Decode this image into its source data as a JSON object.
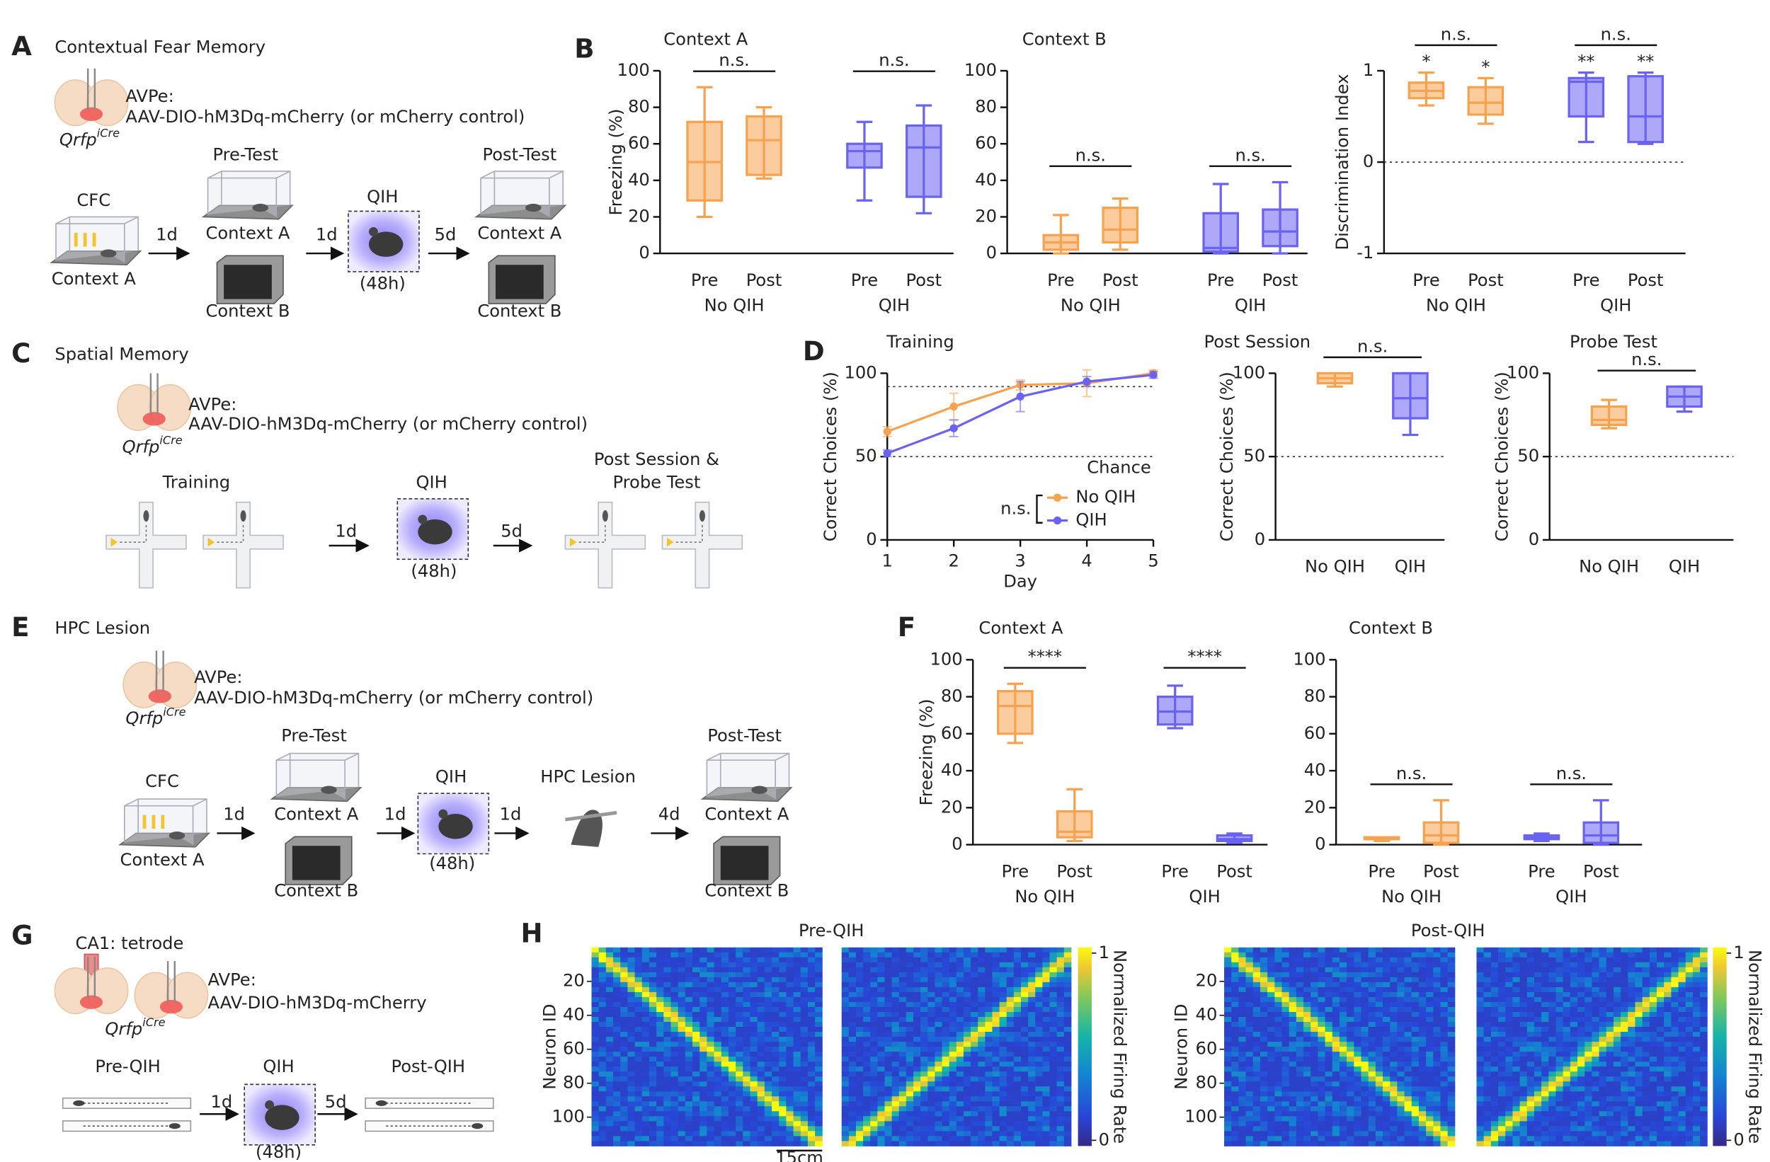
{
  "panels": {
    "A": {
      "letter": "A",
      "title": "Contextual Fear Memory",
      "region": "AVPe:",
      "construct": "AAV-DIO-hM3Dq-mCherry (or mCherry control)",
      "line": "Qrfp",
      "line_sup": "iCre",
      "labels": [
        "CFC",
        "Context A",
        "1d",
        "Pre-Test",
        "Context A",
        "Context B",
        "1d",
        "QIH",
        "(48h)",
        "5d",
        "Post-Test",
        "Context A",
        "Context B"
      ]
    },
    "B": {
      "letter": "B"
    },
    "C": {
      "letter": "C",
      "title": "Spatial Memory",
      "region": "AVPe:",
      "construct": "AAV-DIO-hM3Dq-mCherry (or mCherry control)",
      "line": "Qrfp",
      "line_sup": "iCre",
      "labels": [
        "Training",
        "1d",
        "QIH",
        "(48h)",
        "5d",
        "Post Session &",
        "Probe Test"
      ]
    },
    "D": {
      "letter": "D"
    },
    "E": {
      "letter": "E",
      "title": "HPC Lesion",
      "region": "AVPe:",
      "construct": "AAV-DIO-hM3Dq-mCherry (or mCherry control)",
      "line": "Qrfp",
      "line_sup": "iCre",
      "labels": [
        "CFC",
        "Context A",
        "1d",
        "Pre-Test",
        "Context A",
        "Context B",
        "1d",
        "QIH",
        "(48h)",
        "1d",
        "HPC Lesion",
        "4d",
        "Post-Test",
        "Context A",
        "Context B"
      ]
    },
    "F": {
      "letter": "F"
    },
    "G": {
      "letter": "G",
      "recording": "CA1: tetrode",
      "region": "AVPe:",
      "construct": "AAV-DIO-hM3Dq-mCherry",
      "line": "Qrfp",
      "line_sup": "iCre",
      "labels": [
        "Pre-QIH",
        "1d",
        "QIH",
        "(48h)",
        "5d",
        "Post-QIH"
      ]
    },
    "H": {
      "letter": "H"
    }
  },
  "chart_data": [
    {
      "type": "box",
      "title": "Context A",
      "ylabel": "Freezing (%)",
      "ylim": [
        0,
        100
      ],
      "yticks": [
        0,
        20,
        40,
        60,
        80,
        100
      ],
      "groups": [
        {
          "name": "No QIH",
          "boxes": [
            {
              "label": "Pre",
              "color": "#f7a24f",
              "min": 20,
              "q1": 29,
              "median": 50,
              "q3": 72,
              "max": 91
            },
            {
              "label": "Post",
              "color": "#f7a24f",
              "min": 41,
              "q1": 43,
              "median": 62,
              "q3": 75,
              "max": 80
            }
          ]
        },
        {
          "name": "QIH",
          "boxes": [
            {
              "label": "Pre",
              "color": "#6a63f2",
              "min": 29,
              "q1": 47,
              "median": 56,
              "q3": 60,
              "max": 72
            },
            {
              "label": "Post",
              "color": "#6a63f2",
              "min": 22,
              "q1": 31,
              "median": 58,
              "q3": 70,
              "max": 81
            }
          ]
        }
      ],
      "significance": [
        {
          "label": "n.s.",
          "group": 0
        },
        {
          "label": "n.s.",
          "group": 1
        }
      ]
    },
    {
      "type": "box",
      "title": "Context B",
      "ylim": [
        0,
        100
      ],
      "yticks": [
        0,
        20,
        40,
        60,
        80,
        100
      ],
      "groups": [
        {
          "name": "No QIH",
          "boxes": [
            {
              "label": "Pre",
              "color": "#f7a24f",
              "min": 0,
              "q1": 2,
              "median": 6,
              "q3": 10,
              "max": 21
            },
            {
              "label": "Post",
              "color": "#f7a24f",
              "min": 2,
              "q1": 6,
              "median": 13,
              "q3": 25,
              "max": 30
            }
          ]
        },
        {
          "name": "QIH",
          "boxes": [
            {
              "label": "Pre",
              "color": "#6a63f2",
              "min": 0,
              "q1": 1,
              "median": 3,
              "q3": 22,
              "max": 38
            },
            {
              "label": "Post",
              "color": "#6a63f2",
              "min": 0,
              "q1": 4,
              "median": 12,
              "q3": 24,
              "max": 39
            }
          ]
        }
      ],
      "significance": [
        {
          "label": "n.s.",
          "group": 0
        },
        {
          "label": "n.s.",
          "group": 1
        }
      ]
    },
    {
      "type": "box",
      "ylabel": "Discrimination Index",
      "ylim": [
        -1,
        1
      ],
      "yticks": [
        -1,
        0,
        1
      ],
      "reference_line": 0,
      "groups": [
        {
          "name": "No QIH",
          "boxes": [
            {
              "label": "Pre",
              "color": "#f7a24f",
              "min": 0.62,
              "q1": 0.7,
              "median": 0.78,
              "q3": 0.87,
              "max": 0.98,
              "star": "*"
            },
            {
              "label": "Post",
              "color": "#f7a24f",
              "min": 0.42,
              "q1": 0.52,
              "median": 0.65,
              "q3": 0.82,
              "max": 0.92,
              "star": "*"
            }
          ]
        },
        {
          "name": "QIH",
          "boxes": [
            {
              "label": "Pre",
              "color": "#6a63f2",
              "min": 0.22,
              "q1": 0.5,
              "median": 0.88,
              "q3": 0.92,
              "max": 0.98,
              "star": "**"
            },
            {
              "label": "Post",
              "color": "#6a63f2",
              "min": 0.2,
              "q1": 0.22,
              "median": 0.5,
              "q3": 0.94,
              "max": 0.98,
              "star": "**"
            }
          ]
        }
      ],
      "significance": [
        {
          "label": "n.s.",
          "group": 0
        },
        {
          "label": "n.s.",
          "group": 1
        }
      ]
    },
    {
      "type": "line",
      "title": "Training",
      "xlabel": "Day",
      "ylabel": "Correct Choices (%)",
      "x": [
        1,
        2,
        3,
        4,
        5
      ],
      "xlim": [
        1,
        5
      ],
      "xticks": [
        1,
        2,
        3,
        4,
        5
      ],
      "ylim": [
        0,
        100
      ],
      "yticks": [
        0,
        50,
        100
      ],
      "reference_lines": [
        50,
        92
      ],
      "annotation": "Chance",
      "legend_note": "n.s.",
      "series": [
        {
          "name": "No QIH",
          "color": "#f7a24f",
          "values": [
            65,
            80,
            93,
            94,
            100
          ],
          "errors": [
            3,
            8,
            3,
            8,
            2
          ]
        },
        {
          "name": "QIH",
          "color": "#6a63f2",
          "values": [
            52,
            67,
            86,
            95,
            99
          ],
          "errors": [
            2,
            5,
            9,
            3,
            2
          ]
        }
      ]
    },
    {
      "type": "box",
      "title": "Post Session",
      "ylabel": "Correct Choices (%)",
      "ylim": [
        0,
        100
      ],
      "yticks": [
        0,
        50,
        100
      ],
      "reference_line": 50,
      "groups": [
        {
          "boxes": [
            {
              "label": "No QIH",
              "color": "#f7a24f",
              "min": 92,
              "q1": 94,
              "median": 97,
              "q3": 100,
              "max": 100
            },
            {
              "label": "QIH",
              "color": "#6a63f2",
              "min": 63,
              "q1": 73,
              "median": 85,
              "q3": 100,
              "max": 100
            }
          ]
        }
      ],
      "significance": [
        {
          "label": "n.s.",
          "group": 0
        }
      ]
    },
    {
      "type": "box",
      "title": "Probe Test",
      "ylabel": "Correct Choices (%)",
      "ylim": [
        0,
        100
      ],
      "yticks": [
        0,
        50,
        100
      ],
      "reference_line": 50,
      "groups": [
        {
          "boxes": [
            {
              "label": "No QIH",
              "color": "#f7a24f",
              "min": 67,
              "q1": 69,
              "median": 72,
              "q3": 80,
              "max": 84
            },
            {
              "label": "QIH",
              "color": "#6a63f2",
              "min": 77,
              "q1": 80,
              "median": 86,
              "q3": 92,
              "max": 92
            }
          ]
        }
      ],
      "significance": [
        {
          "label": "n.s.",
          "group": 0
        }
      ]
    },
    {
      "type": "box",
      "title": "Context A",
      "ylabel": "Freezing (%)",
      "ylim": [
        0,
        100
      ],
      "yticks": [
        0,
        20,
        40,
        60,
        80,
        100
      ],
      "groups": [
        {
          "name": "No QIH",
          "boxes": [
            {
              "label": "Pre",
              "color": "#f7a24f",
              "min": 55,
              "q1": 60,
              "median": 75,
              "q3": 83,
              "max": 87
            },
            {
              "label": "Post",
              "color": "#f7a24f",
              "min": 2,
              "q1": 4,
              "median": 7,
              "q3": 18,
              "max": 30
            }
          ]
        },
        {
          "name": "QIH",
          "boxes": [
            {
              "label": "Pre",
              "color": "#6a63f2",
              "min": 63,
              "q1": 65,
              "median": 72,
              "q3": 80,
              "max": 86
            },
            {
              "label": "Post",
              "color": "#6a63f2",
              "min": 1,
              "q1": 2,
              "median": 3,
              "q3": 5,
              "max": 6
            }
          ]
        }
      ],
      "significance": [
        {
          "label": "****",
          "group": 0
        },
        {
          "label": "****",
          "group": 1
        }
      ]
    },
    {
      "type": "box",
      "title": "Context B",
      "ylim": [
        0,
        100
      ],
      "yticks": [
        0,
        20,
        40,
        60,
        80,
        100
      ],
      "groups": [
        {
          "name": "No QIH",
          "boxes": [
            {
              "label": "Pre",
              "color": "#f7a24f",
              "min": 2,
              "q1": 3,
              "median": 3,
              "q3": 4,
              "max": 4
            },
            {
              "label": "Post",
              "color": "#f7a24f",
              "min": 0,
              "q1": 1,
              "median": 5,
              "q3": 12,
              "max": 24
            }
          ]
        },
        {
          "name": "QIH",
          "boxes": [
            {
              "label": "Pre",
              "color": "#6a63f2",
              "min": 2,
              "q1": 3,
              "median": 4,
              "q3": 5,
              "max": 6
            },
            {
              "label": "Post",
              "color": "#6a63f2",
              "min": 0,
              "q1": 1,
              "median": 5,
              "q3": 12,
              "max": 24
            }
          ]
        }
      ],
      "significance": [
        {
          "label": "n.s.",
          "group": 0
        },
        {
          "label": "n.s.",
          "group": 1
        }
      ]
    },
    {
      "type": "heatmap",
      "title": "Pre-QIH",
      "ylabel": "Neuron ID",
      "ylim": [
        0,
        117
      ],
      "yticks": [
        20,
        40,
        60,
        80,
        100
      ],
      "colorbar": {
        "label": "Normalized Firing Rate",
        "ticks": [
          0,
          1
        ]
      },
      "scale_bar": "15cm"
    },
    {
      "type": "heatmap",
      "title": "Post-QIH",
      "ylabel": "Neuron ID",
      "ylim": [
        0,
        117
      ],
      "yticks": [
        20,
        40,
        60,
        80,
        100
      ],
      "colorbar": {
        "label": "Normalized Firing Rate",
        "ticks": [
          0,
          1
        ]
      }
    }
  ]
}
